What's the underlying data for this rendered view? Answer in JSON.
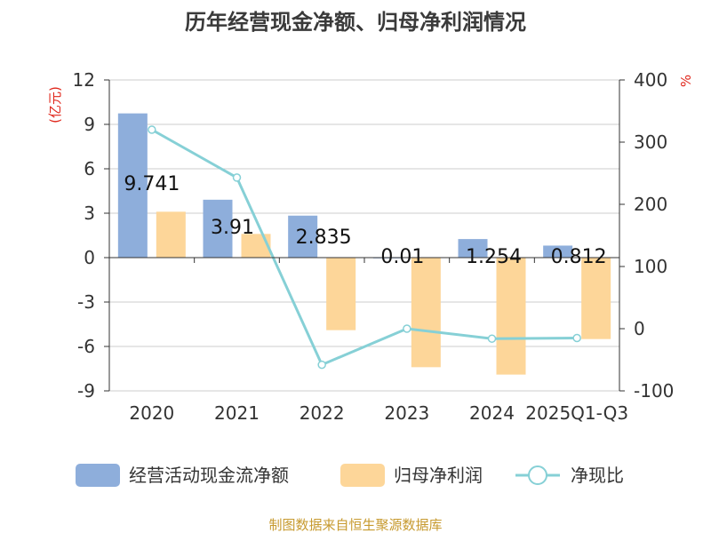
{
  "chart_data": {
    "type": "bar",
    "title": "历年经营现金净额、归母净利润情况",
    "y_left_label": "(亿元)",
    "y_right_label": "%",
    "categories": [
      "2020",
      "2021",
      "2022",
      "2023",
      "2024",
      "2025Q1-Q3"
    ],
    "y_left_ticks": [
      "12",
      "9",
      "6",
      "3",
      "0",
      "-3",
      "-6",
      "-9"
    ],
    "y_right_ticks": [
      "400",
      "300",
      "200",
      "100",
      "0",
      "-100"
    ],
    "ylim_left": [
      -9,
      12
    ],
    "ylim_right": [
      -100,
      400
    ],
    "series": [
      {
        "name": "经营活动现金流净额",
        "type": "bar",
        "axis": "left",
        "values": [
          9.741,
          3.91,
          2.835,
          0.01,
          1.254,
          0.812
        ],
        "labels": [
          "9.741",
          "3.91",
          "2.835",
          "0.01",
          "1.254",
          "0.812"
        ],
        "color": "#8eaedb"
      },
      {
        "name": "归母净利润",
        "type": "bar",
        "axis": "left",
        "values": [
          3.1,
          1.6,
          -4.9,
          -7.4,
          -7.9,
          -5.5
        ],
        "color": "#fdd699"
      },
      {
        "name": "净现比",
        "type": "line",
        "axis": "right",
        "values": [
          320,
          243,
          -58,
          0,
          -16,
          -15
        ],
        "color": "#86d0d6"
      }
    ],
    "grid": true,
    "legend_position": "bottom"
  },
  "footer": {
    "source": "制图数据来自恒生聚源数据库"
  }
}
